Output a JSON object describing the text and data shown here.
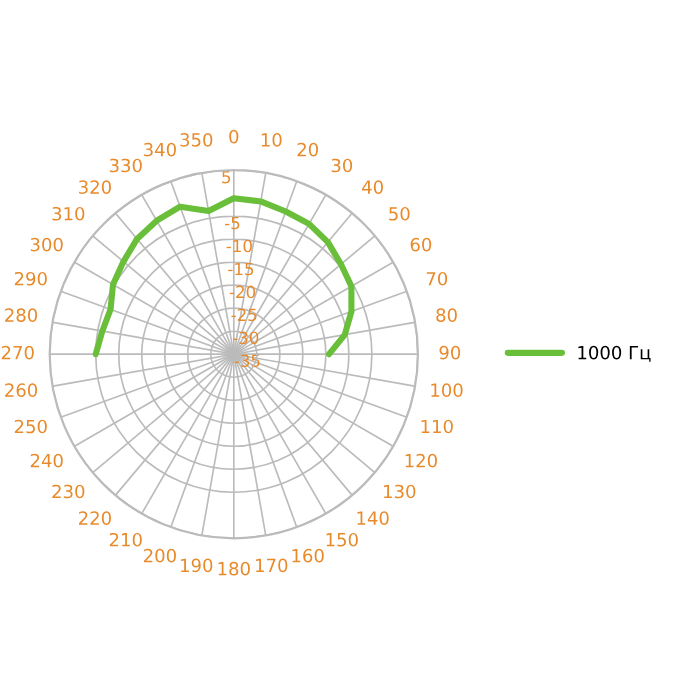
{
  "chart_data": {
    "type": "radar",
    "categories": [
      "0",
      "10",
      "20",
      "30",
      "40",
      "50",
      "60",
      "70",
      "80",
      "90",
      "100",
      "110",
      "120",
      "130",
      "140",
      "150",
      "160",
      "170",
      "180",
      "190",
      "200",
      "210",
      "220",
      "230",
      "240",
      "250",
      "260",
      "270",
      "280",
      "290",
      "300",
      "310",
      "320",
      "330",
      "340",
      "350"
    ],
    "series": [
      {
        "name": "1000 Гц",
        "color": "#6abf3a",
        "values": [
          -1.1,
          -1.3,
          -2,
          -2.3,
          -3.2,
          -4.6,
          -5.5,
          -7.8,
          -10.5,
          -14.3,
          null,
          null,
          null,
          null,
          null,
          null,
          null,
          null,
          null,
          null,
          null,
          null,
          null,
          null,
          null,
          null,
          null,
          -5,
          -6,
          -6.5,
          -4.7,
          -3.7,
          -2.3,
          -1.5,
          -0.9,
          -3.4
        ]
      }
    ],
    "ylim": [
      -35,
      5
    ],
    "yticks": [
      -35,
      -30,
      -25,
      -20,
      -15,
      -10,
      -5,
      5
    ],
    "grid": true,
    "legend": "right"
  }
}
